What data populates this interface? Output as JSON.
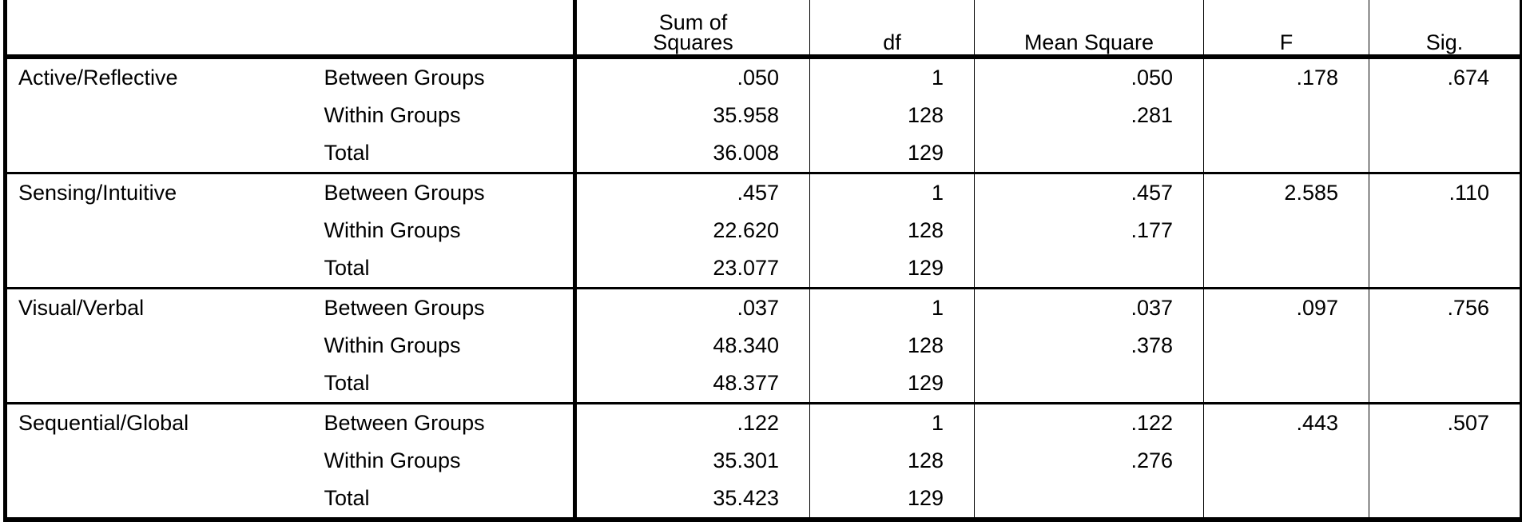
{
  "headers": [
    "",
    "",
    "Sum of Squares",
    "df",
    "Mean Square",
    "F",
    "Sig."
  ],
  "groups": [
    {
      "name": "Active/Reflective",
      "rows": [
        {
          "source": "Between Groups",
          "ss": ".050",
          "df": "1",
          "ms": ".050",
          "f": ".178",
          "sig": ".674"
        },
        {
          "source": "Within Groups",
          "ss": "35.958",
          "df": "128",
          "ms": ".281",
          "f": "",
          "sig": ""
        },
        {
          "source": "Total",
          "ss": "36.008",
          "df": "129",
          "ms": "",
          "f": "",
          "sig": ""
        }
      ]
    },
    {
      "name": "Sensing/Intuitive",
      "rows": [
        {
          "source": "Between Groups",
          "ss": ".457",
          "df": "1",
          "ms": ".457",
          "f": "2.585",
          "sig": ".110"
        },
        {
          "source": "Within Groups",
          "ss": "22.620",
          "df": "128",
          "ms": ".177",
          "f": "",
          "sig": ""
        },
        {
          "source": "Total",
          "ss": "23.077",
          "df": "129",
          "ms": "",
          "f": "",
          "sig": ""
        }
      ]
    },
    {
      "name": "Visual/Verbal",
      "rows": [
        {
          "source": "Between Groups",
          "ss": ".037",
          "df": "1",
          "ms": ".037",
          "f": ".097",
          "sig": ".756"
        },
        {
          "source": "Within Groups",
          "ss": "48.340",
          "df": "128",
          "ms": ".378",
          "f": "",
          "sig": ""
        },
        {
          "source": "Total",
          "ss": "48.377",
          "df": "129",
          "ms": "",
          "f": "",
          "sig": ""
        }
      ]
    },
    {
      "name": "Sequential/Global",
      "rows": [
        {
          "source": "Between Groups",
          "ss": ".122",
          "df": "1",
          "ms": ".122",
          "f": ".443",
          "sig": ".507"
        },
        {
          "source": "Within Groups",
          "ss": "35.301",
          "df": "128",
          "ms": ".276",
          "f": "",
          "sig": ""
        },
        {
          "source": "Total",
          "ss": "35.423",
          "df": "129",
          "ms": "",
          "f": "",
          "sig": ""
        }
      ]
    }
  ]
}
